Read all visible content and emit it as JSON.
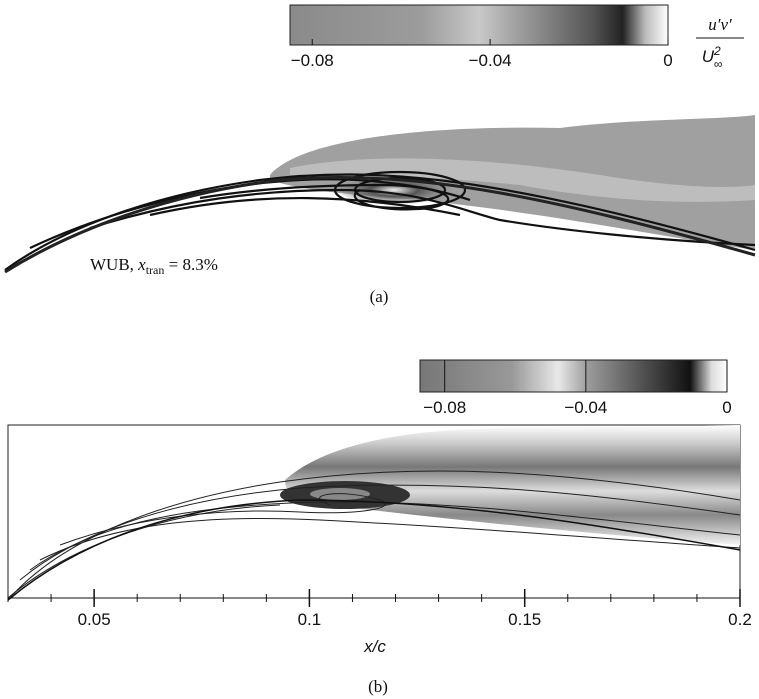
{
  "panels": [
    {
      "colorbar": {
        "range": [
          -0.085,
          0
        ],
        "ticks": [
          {
            "value": -0.08,
            "label": "−0.08"
          },
          {
            "value": -0.04,
            "label": "−0.04"
          },
          0
        ]
      },
      "colorbar_label": {
        "numerator": "u′v′",
        "denominator": "U",
        "superscript": "2",
        "subscript": "∞"
      },
      "annotation": {
        "text": "WUB, ",
        "variable": "x",
        "subscript": "tran",
        "rest": " = 8.3%"
      },
      "caption": "(a)"
    },
    {
      "colorbar": {
        "range": [
          -0.087,
          0
        ],
        "ticks": [
          {
            "value": -0.08,
            "label": "−0.08"
          },
          {
            "value": -0.04,
            "label": "−0.04"
          },
          0
        ]
      },
      "xaxis": {
        "label": "x/c",
        "range": [
          0.03,
          0.2
        ],
        "ticks": [
          0.05,
          0.1,
          0.15,
          0.2
        ],
        "minor_step": 0.01
      },
      "caption": "(b)"
    }
  ]
}
